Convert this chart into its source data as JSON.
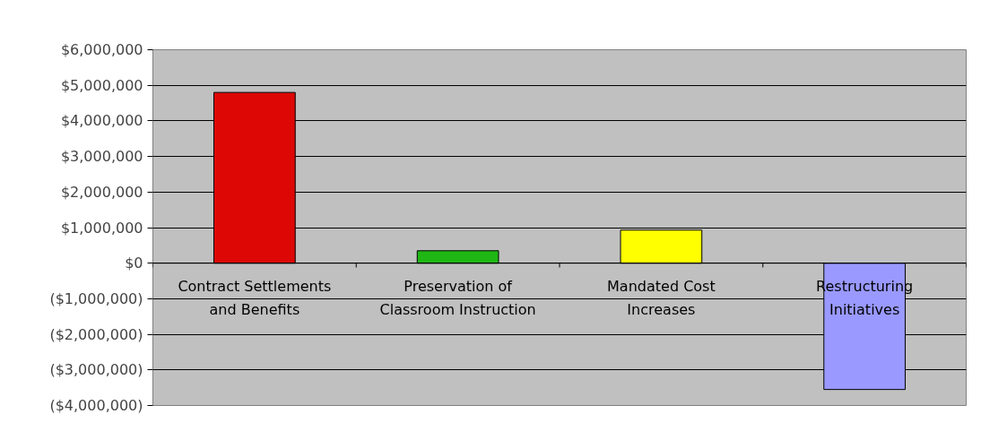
{
  "chart_data": {
    "type": "bar",
    "categories": [
      "Contract Settlements and Benefits",
      "Preservation of Classroom Instruction",
      "Mandated Cost Increases",
      "Restructuring Initiatives"
    ],
    "values": [
      4800000,
      350000,
      930000,
      -3550000
    ],
    "colors": [
      "#dd0806",
      "#1fb714",
      "#ffff00",
      "#9999ff"
    ],
    "ylim": [
      -4000000,
      6000000
    ],
    "yticks": [
      {
        "value": -4000000,
        "label": "($4,000,000)"
      },
      {
        "value": -3000000,
        "label": "($3,000,000)"
      },
      {
        "value": -2000000,
        "label": "($2,000,000)"
      },
      {
        "value": -1000000,
        "label": "($1,000,000)"
      },
      {
        "value": 0,
        "label": "$0"
      },
      {
        "value": 1000000,
        "label": "$1,000,000"
      },
      {
        "value": 2000000,
        "label": "$2,000,000"
      },
      {
        "value": 3000000,
        "label": "$3,000,000"
      },
      {
        "value": 4000000,
        "label": "$4,000,000"
      },
      {
        "value": 5000000,
        "label": "$5,000,000"
      },
      {
        "value": 6000000,
        "label": "$6,000,000"
      }
    ],
    "grid": "y"
  }
}
